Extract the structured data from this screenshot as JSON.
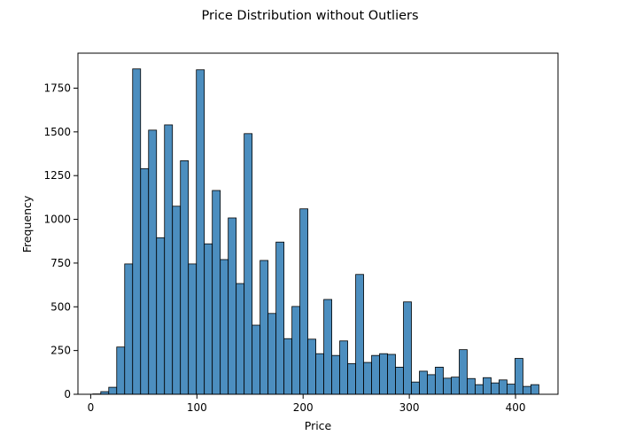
{
  "chart_data": {
    "type": "bar",
    "subtype": "histogram",
    "title": "Price Distribution without Outliers",
    "xlabel": "Price",
    "ylabel": "Frequency",
    "xlim": [
      -12,
      440
    ],
    "ylim": [
      0,
      1950
    ],
    "xticks": [
      0,
      100,
      200,
      300,
      400
    ],
    "yticks": [
      0,
      250,
      500,
      750,
      1000,
      1250,
      1500,
      1750
    ],
    "bin_start": 2,
    "bin_width": 7.5,
    "values": [
      2,
      15,
      40,
      270,
      745,
      1860,
      1290,
      1510,
      895,
      1540,
      1075,
      1335,
      745,
      1855,
      860,
      1165,
      770,
      1008,
      633,
      1490,
      395,
      765,
      462,
      870,
      318,
      502,
      1060,
      315,
      232,
      542,
      222,
      305,
      175,
      685,
      182,
      222,
      232,
      228,
      155,
      528,
      70,
      132,
      112,
      155,
      92,
      98,
      255,
      90,
      55,
      95,
      65,
      82,
      58,
      205,
      45,
      55
    ],
    "bar_color": "#4c8ebf",
    "edge_color": "#000000",
    "grid": false,
    "legend": "none"
  }
}
